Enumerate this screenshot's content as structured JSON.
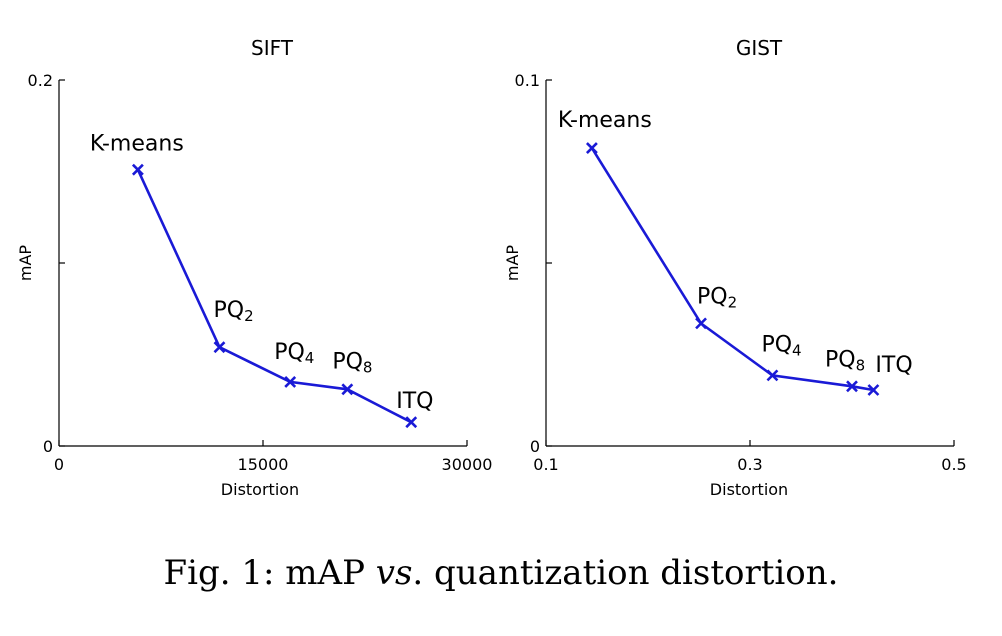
{
  "chart_data": [
    {
      "type": "line",
      "title": "SIFT",
      "xlabel": "Distortion",
      "ylabel": "mAP",
      "xlim": [
        0,
        30000
      ],
      "ylim": [
        0,
        0.2
      ],
      "xticks": [
        0,
        15000,
        30000
      ],
      "xtick_labels": [
        "0",
        "15000",
        "30000"
      ],
      "yticks": [
        0,
        0.1,
        0.2
      ],
      "ytick_labels": [
        "0",
        "",
        "0.2"
      ],
      "series_color": "#1a1ad6",
      "points": [
        {
          "x": 5800,
          "y": 0.151,
          "label": "K-means",
          "sub": ""
        },
        {
          "x": 11800,
          "y": 0.054,
          "label": "PQ",
          "sub": "2"
        },
        {
          "x": 17000,
          "y": 0.035,
          "label": "PQ",
          "sub": "4"
        },
        {
          "x": 21200,
          "y": 0.031,
          "label": "PQ",
          "sub": "8"
        },
        {
          "x": 25900,
          "y": 0.013,
          "label": "ITQ",
          "sub": ""
        }
      ]
    },
    {
      "type": "line",
      "title": "GIST",
      "xlabel": "Distortion",
      "ylabel": "mAP",
      "xlim": [
        0.1,
        0.5
      ],
      "ylim": [
        0,
        0.1
      ],
      "xticks": [
        0.1,
        0.3,
        0.5
      ],
      "xtick_labels": [
        "0.1",
        "0.3",
        "0.5"
      ],
      "yticks": [
        0,
        0.05,
        0.1
      ],
      "ytick_labels": [
        "0",
        "",
        "0.1"
      ],
      "series_color": "#1a1ad6",
      "points": [
        {
          "x": 0.145,
          "y": 0.0814,
          "label": "K-means",
          "sub": ""
        },
        {
          "x": 0.252,
          "y": 0.0335,
          "label": "PQ",
          "sub": "2"
        },
        {
          "x": 0.322,
          "y": 0.0193,
          "label": "PQ",
          "sub": "4"
        },
        {
          "x": 0.4,
          "y": 0.0163,
          "label": "PQ",
          "sub": "8"
        },
        {
          "x": 0.421,
          "y": 0.0153,
          "label": "ITQ",
          "sub": ""
        }
      ]
    }
  ],
  "caption": {
    "prefix": "Fig. 1: mAP ",
    "italic": "vs",
    "suffix": ". quantization distortion."
  }
}
